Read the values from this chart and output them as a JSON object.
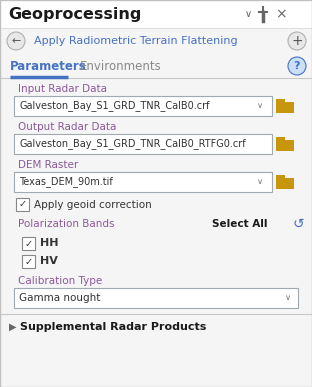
{
  "bg_color": "#f0f0f0",
  "white": "#ffffff",
  "title": "Geoprocessing",
  "subtitle": "Apply Radiometric Terrain Flattening",
  "tab1": "Parameters",
  "tab2": "Environments",
  "label_color": "#8b5a9a",
  "title_color": "#1a1a1a",
  "subtitle_color": "#4472c4",
  "text_color": "#333333",
  "border_color": "#b0b0b0",
  "blue_line_color": "#4472c4",
  "input_field_1_label": "Input Radar Data",
  "input_field_1_value": "Galveston_Bay_S1_GRD_TNR_CalB0.crf",
  "input_field_1_dropdown": true,
  "input_field_2_label": "Output Radar Data",
  "input_field_2_value": "Galveston_Bay_S1_GRD_TNR_CalB0_RTFG0.crf",
  "input_field_2_dropdown": false,
  "input_field_3_label": "DEM Raster",
  "input_field_3_value": "Texas_DEM_90m.tif",
  "input_field_3_dropdown": true,
  "checkbox_label": "Apply geoid correction",
  "pol_label": "Polarization Bands",
  "pol_items": [
    "HH",
    "HV"
  ],
  "cal_label": "Calibration Type",
  "cal_value": "Gamma nought",
  "supplemental": "Supplemental Radar Products",
  "folder_color": "#c8960c",
  "folder_bg": "#d4a017",
  "check_color": "#333333",
  "select_all_color": "#1a1a1a",
  "refresh_color": "#4472c4",
  "help_color": "#4472c4",
  "help_bg": "#cce0f5",
  "icon_color": "#666666",
  "separator_color": "#c8c8c8",
  "field_border": "#a0a8b0",
  "content_bg": "#f5f5f5"
}
